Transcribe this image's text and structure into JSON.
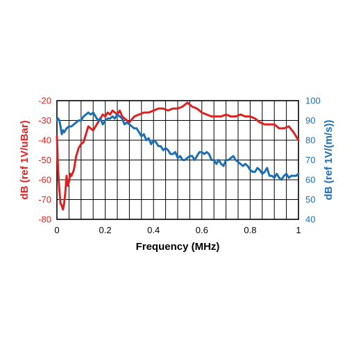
{
  "chart_data": {
    "type": "line",
    "xlabel": "Frequency (MHz)",
    "ylabel_left": "dB (ref 1V/uBar)",
    "ylabel_right": "dB (ref 1V/(m/s))",
    "xlim": [
      0,
      1
    ],
    "ylim_left": [
      -80,
      -20
    ],
    "ylim_right": [
      40,
      100
    ],
    "x_ticks": [
      "0",
      "0.2",
      "0.4",
      "0.6",
      "0.8",
      "1"
    ],
    "y_left_ticks": [
      "-20",
      "-30",
      "-40",
      "-50",
      "-60",
      "-70",
      "-80"
    ],
    "y_right_ticks": [
      "100",
      "90",
      "80",
      "70",
      "60",
      "50",
      "40"
    ],
    "grid": true,
    "colors": {
      "left": "#e02020",
      "right": "#1a6fb5"
    },
    "series": [
      {
        "axis": "left",
        "x": [
          0.0,
          0.005,
          0.01,
          0.015,
          0.02,
          0.025,
          0.03,
          0.035,
          0.04,
          0.045,
          0.05,
          0.055,
          0.06,
          0.07,
          0.08,
          0.09,
          0.1,
          0.11,
          0.12,
          0.13,
          0.14,
          0.15,
          0.16,
          0.17,
          0.18,
          0.19,
          0.2,
          0.21,
          0.22,
          0.23,
          0.24,
          0.25,
          0.26,
          0.27,
          0.28,
          0.29,
          0.3,
          0.32,
          0.34,
          0.36,
          0.38,
          0.4,
          0.42,
          0.44,
          0.46,
          0.48,
          0.5,
          0.52,
          0.54,
          0.56,
          0.58,
          0.6,
          0.62,
          0.64,
          0.66,
          0.68,
          0.7,
          0.72,
          0.74,
          0.76,
          0.78,
          0.8,
          0.82,
          0.84,
          0.86,
          0.88,
          0.9,
          0.92,
          0.94,
          0.96,
          0.98,
          1.0
        ],
        "values": [
          -38,
          -55,
          -65,
          -72,
          -73,
          -75,
          -72,
          -66,
          -58,
          -63,
          -61,
          -57,
          -58,
          -55,
          -48,
          -44,
          -42,
          -41,
          -37,
          -33,
          -34,
          -35,
          -33,
          -31,
          -29,
          -27,
          -28,
          -26,
          -27,
          -25,
          -26,
          -27,
          -25,
          -28,
          -29,
          -30,
          -31,
          -28,
          -27,
          -26,
          -26,
          -25,
          -24,
          -24,
          -25,
          -24,
          -24,
          -23,
          -21,
          -23,
          -24,
          -26,
          -27,
          -28,
          -28,
          -28,
          -27,
          -28,
          -28,
          -27,
          -28,
          -28,
          -29,
          -31,
          -32,
          -32,
          -32,
          -34,
          -34,
          -33,
          -36,
          -40
        ]
      },
      {
        "axis": "right",
        "x": [
          0.0,
          0.005,
          0.01,
          0.015,
          0.02,
          0.025,
          0.03,
          0.04,
          0.05,
          0.06,
          0.07,
          0.08,
          0.09,
          0.1,
          0.11,
          0.12,
          0.13,
          0.14,
          0.15,
          0.16,
          0.17,
          0.18,
          0.19,
          0.2,
          0.21,
          0.22,
          0.23,
          0.24,
          0.25,
          0.26,
          0.27,
          0.28,
          0.29,
          0.3,
          0.31,
          0.32,
          0.33,
          0.34,
          0.35,
          0.36,
          0.37,
          0.38,
          0.39,
          0.4,
          0.41,
          0.42,
          0.43,
          0.44,
          0.45,
          0.46,
          0.47,
          0.48,
          0.49,
          0.5,
          0.51,
          0.52,
          0.53,
          0.54,
          0.55,
          0.56,
          0.57,
          0.58,
          0.59,
          0.6,
          0.61,
          0.62,
          0.63,
          0.64,
          0.65,
          0.66,
          0.67,
          0.68,
          0.69,
          0.7,
          0.71,
          0.72,
          0.73,
          0.74,
          0.75,
          0.76,
          0.77,
          0.78,
          0.79,
          0.8,
          0.81,
          0.82,
          0.83,
          0.84,
          0.85,
          0.86,
          0.87,
          0.88,
          0.89,
          0.9,
          0.91,
          0.92,
          0.93,
          0.94,
          0.95,
          0.96,
          0.97,
          0.98,
          0.99,
          1.0
        ],
        "values": [
          90,
          91,
          90,
          87,
          83,
          85,
          84,
          86,
          87,
          87,
          88,
          89,
          90,
          90,
          92,
          93,
          94,
          93,
          94,
          92,
          90,
          91,
          88,
          90,
          91,
          91,
          92,
          91,
          93,
          92,
          91,
          88,
          89,
          88,
          87,
          86,
          86,
          84,
          82,
          83,
          80,
          81,
          78,
          80,
          79,
          77,
          77,
          75,
          76,
          75,
          73,
          73,
          74,
          71,
          72,
          70,
          70,
          71,
          72,
          72,
          70,
          72,
          74,
          74,
          73,
          74,
          73,
          70,
          70,
          68,
          70,
          68,
          67,
          70,
          70,
          71,
          72,
          70,
          69,
          68,
          67,
          68,
          67,
          65,
          64,
          64,
          66,
          65,
          63,
          64,
          66,
          62,
          62,
          61,
          63,
          61,
          60,
          62,
          63,
          61,
          62,
          62,
          62,
          63
        ]
      }
    ]
  }
}
